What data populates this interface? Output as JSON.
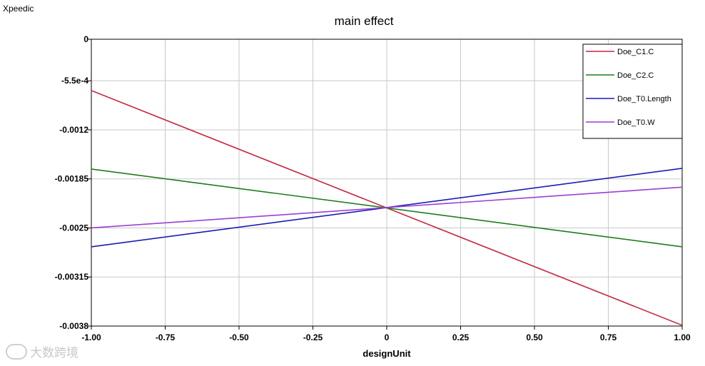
{
  "app": {
    "title": "Xpeedic"
  },
  "watermark": {
    "text": "大数跨境"
  },
  "chart_data": {
    "type": "line",
    "title": "main effect",
    "xlabel": "designUnit",
    "ylabel": "",
    "xlim": [
      -1.0,
      1.0
    ],
    "ylim": [
      -0.0038,
      0
    ],
    "x_tick_labels": [
      "-1.00",
      "-0.75",
      "-0.50",
      "-0.25",
      "0",
      "0.25",
      "0.50",
      "0.75",
      "1.00"
    ],
    "x_ticks": [
      -1.0,
      -0.75,
      -0.5,
      -0.25,
      0,
      0.25,
      0.5,
      0.75,
      1.0
    ],
    "y_tick_labels": [
      "0",
      "-5.5e-4",
      "-0.0012",
      "-0.00185",
      "-0.0025",
      "-0.00315",
      "-0.0038"
    ],
    "y_ticks": [
      0,
      -0.00055,
      -0.0012,
      -0.00185,
      -0.0025,
      -0.00315,
      -0.0038
    ],
    "grid": true,
    "legend_position": "top-right",
    "series": [
      {
        "name": "Doe_C1.C",
        "color": "#c8233c",
        "x": [
          -1.0,
          1.0
        ],
        "y": [
          -0.00068,
          -0.00379
        ]
      },
      {
        "name": "Doe_C2.C",
        "color": "#1e7d1e",
        "x": [
          -1.0,
          1.0
        ],
        "y": [
          -0.00172,
          -0.00275
        ]
      },
      {
        "name": "Doe_T0.Length",
        "color": "#1c1cb4",
        "x": [
          -1.0,
          1.0
        ],
        "y": [
          -0.00275,
          -0.00171
        ]
      },
      {
        "name": "Doe_T0.W",
        "color": "#9b3fd2",
        "x": [
          -1.0,
          1.0
        ],
        "y": [
          -0.0025,
          -0.00196
        ]
      }
    ]
  }
}
